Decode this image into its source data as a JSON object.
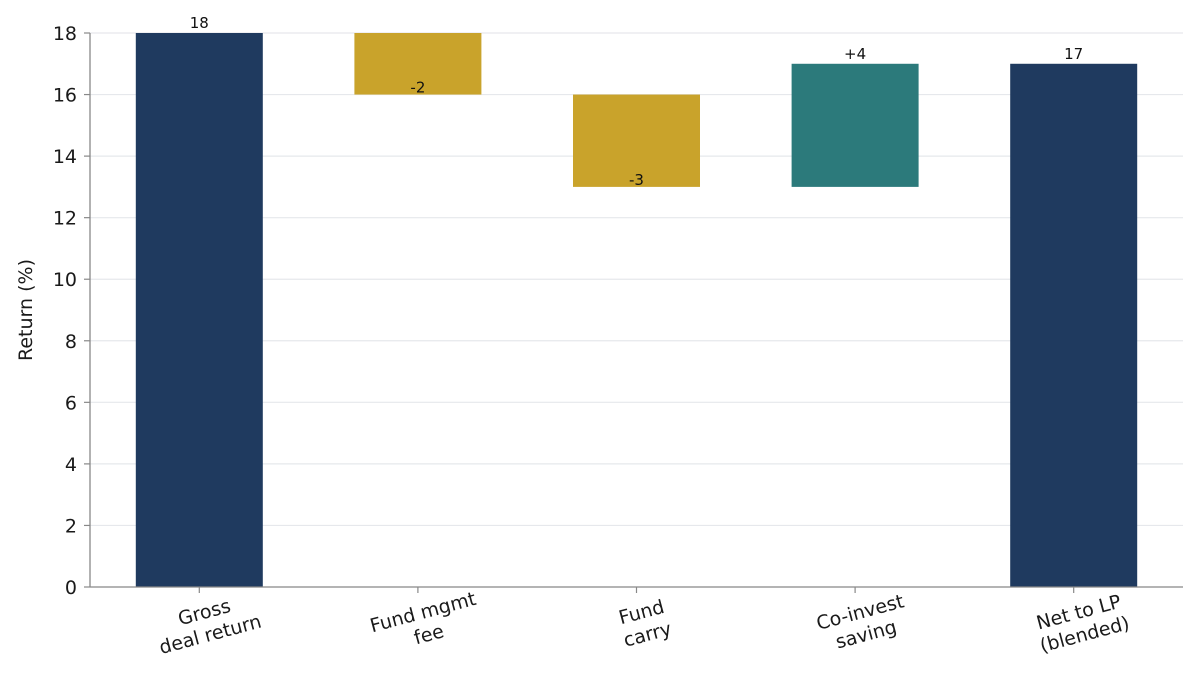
{
  "chart_data": {
    "type": "bar",
    "subtype": "waterfall",
    "title": "",
    "xlabel": "",
    "ylabel": "Return (%)",
    "ylim": [
      0,
      18
    ],
    "yticks": [
      0,
      2,
      4,
      6,
      8,
      10,
      12,
      14,
      16,
      18
    ],
    "grid": "horizontal",
    "legend": "none",
    "categories": [
      [
        "Gross",
        "deal return"
      ],
      [
        "Fund mgmt",
        "fee"
      ],
      [
        "Fund",
        "carry"
      ],
      [
        "Co-invest",
        "saving"
      ],
      [
        "Net to LP",
        "(blended)"
      ]
    ],
    "bars": [
      {
        "kind": "total",
        "start": 0,
        "end": 18,
        "label": "18",
        "color": "#1f3a5f"
      },
      {
        "kind": "decrease",
        "start": 18,
        "end": 16,
        "label": "-2",
        "color": "#c9a32b"
      },
      {
        "kind": "decrease",
        "start": 16,
        "end": 13,
        "label": "-3",
        "color": "#c9a32b"
      },
      {
        "kind": "increase",
        "start": 13,
        "end": 17,
        "label": "+4",
        "color": "#2c7a7b"
      },
      {
        "kind": "total",
        "start": 0,
        "end": 17,
        "label": "17",
        "color": "#1f3a5f"
      }
    ]
  }
}
